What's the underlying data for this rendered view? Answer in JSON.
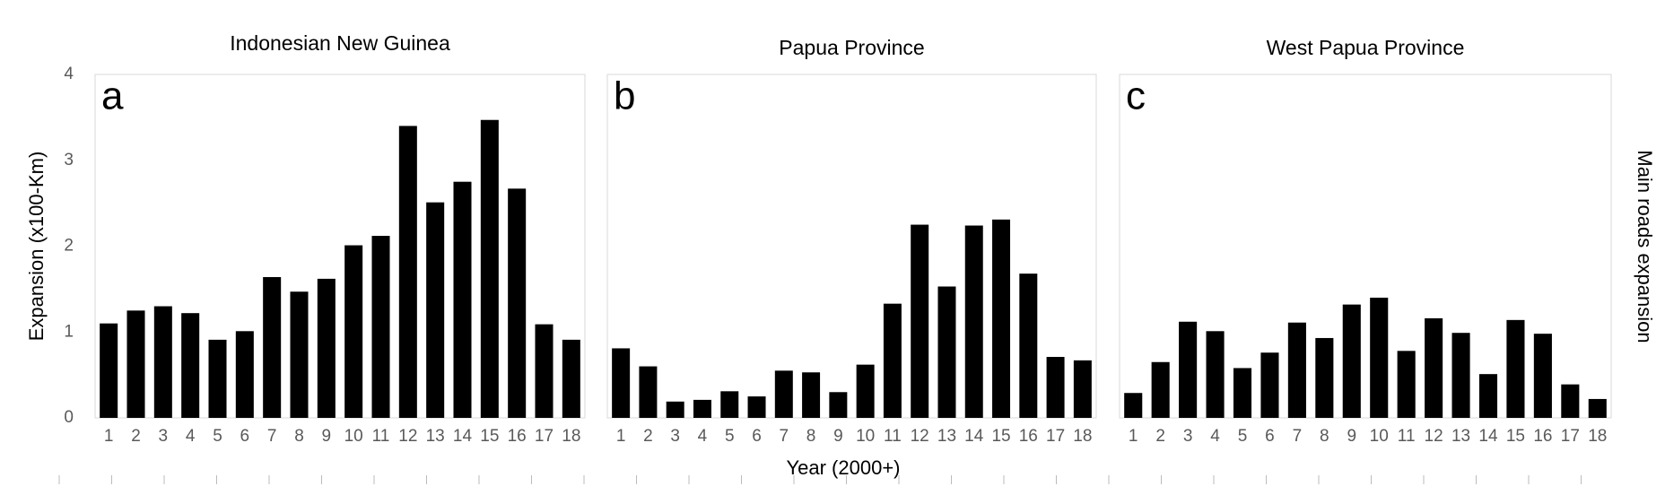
{
  "chart_data": [
    {
      "type": "bar",
      "title": "Indonesian New Guinea",
      "panel_label": "a",
      "ylabel": "Expansion (x100-Km)",
      "categories": [
        1,
        2,
        3,
        4,
        5,
        6,
        7,
        8,
        9,
        10,
        11,
        12,
        13,
        14,
        15,
        16,
        17,
        18
      ],
      "values": [
        1.1,
        1.25,
        1.3,
        1.22,
        0.91,
        1.01,
        1.64,
        1.47,
        1.62,
        2.01,
        2.12,
        3.4,
        2.51,
        2.75,
        3.47,
        2.67,
        1.09,
        0.91
      ],
      "color": "#000000",
      "ylim": [
        0,
        4
      ],
      "yticks": [
        0,
        1,
        2,
        3,
        4
      ]
    },
    {
      "type": "bar",
      "title": "Papua Province",
      "panel_label": "b",
      "xlabel": "Year (2000+)",
      "categories": [
        1,
        2,
        3,
        4,
        5,
        6,
        7,
        8,
        9,
        10,
        11,
        12,
        13,
        14,
        15,
        16,
        17,
        18
      ],
      "values": [
        0.81,
        0.6,
        0.19,
        0.21,
        0.31,
        0.25,
        0.55,
        0.53,
        0.3,
        0.62,
        1.33,
        2.25,
        1.53,
        2.24,
        2.31,
        1.68,
        0.71,
        0.67
      ],
      "color": "#000000",
      "ylim": [
        0,
        4
      ]
    },
    {
      "type": "bar",
      "title": "West Papua Province",
      "panel_label": "c",
      "side_label": "Main roads expansion",
      "categories": [
        1,
        2,
        3,
        4,
        5,
        6,
        7,
        8,
        9,
        10,
        11,
        12,
        13,
        14,
        15,
        16,
        17,
        18
      ],
      "values": [
        0.29,
        0.65,
        1.12,
        1.01,
        0.58,
        0.76,
        1.11,
        0.93,
        1.32,
        1.4,
        0.78,
        1.16,
        0.99,
        0.51,
        1.14,
        0.98,
        0.39,
        0.22
      ],
      "color": "#000000",
      "ylim": [
        0,
        4
      ]
    }
  ]
}
